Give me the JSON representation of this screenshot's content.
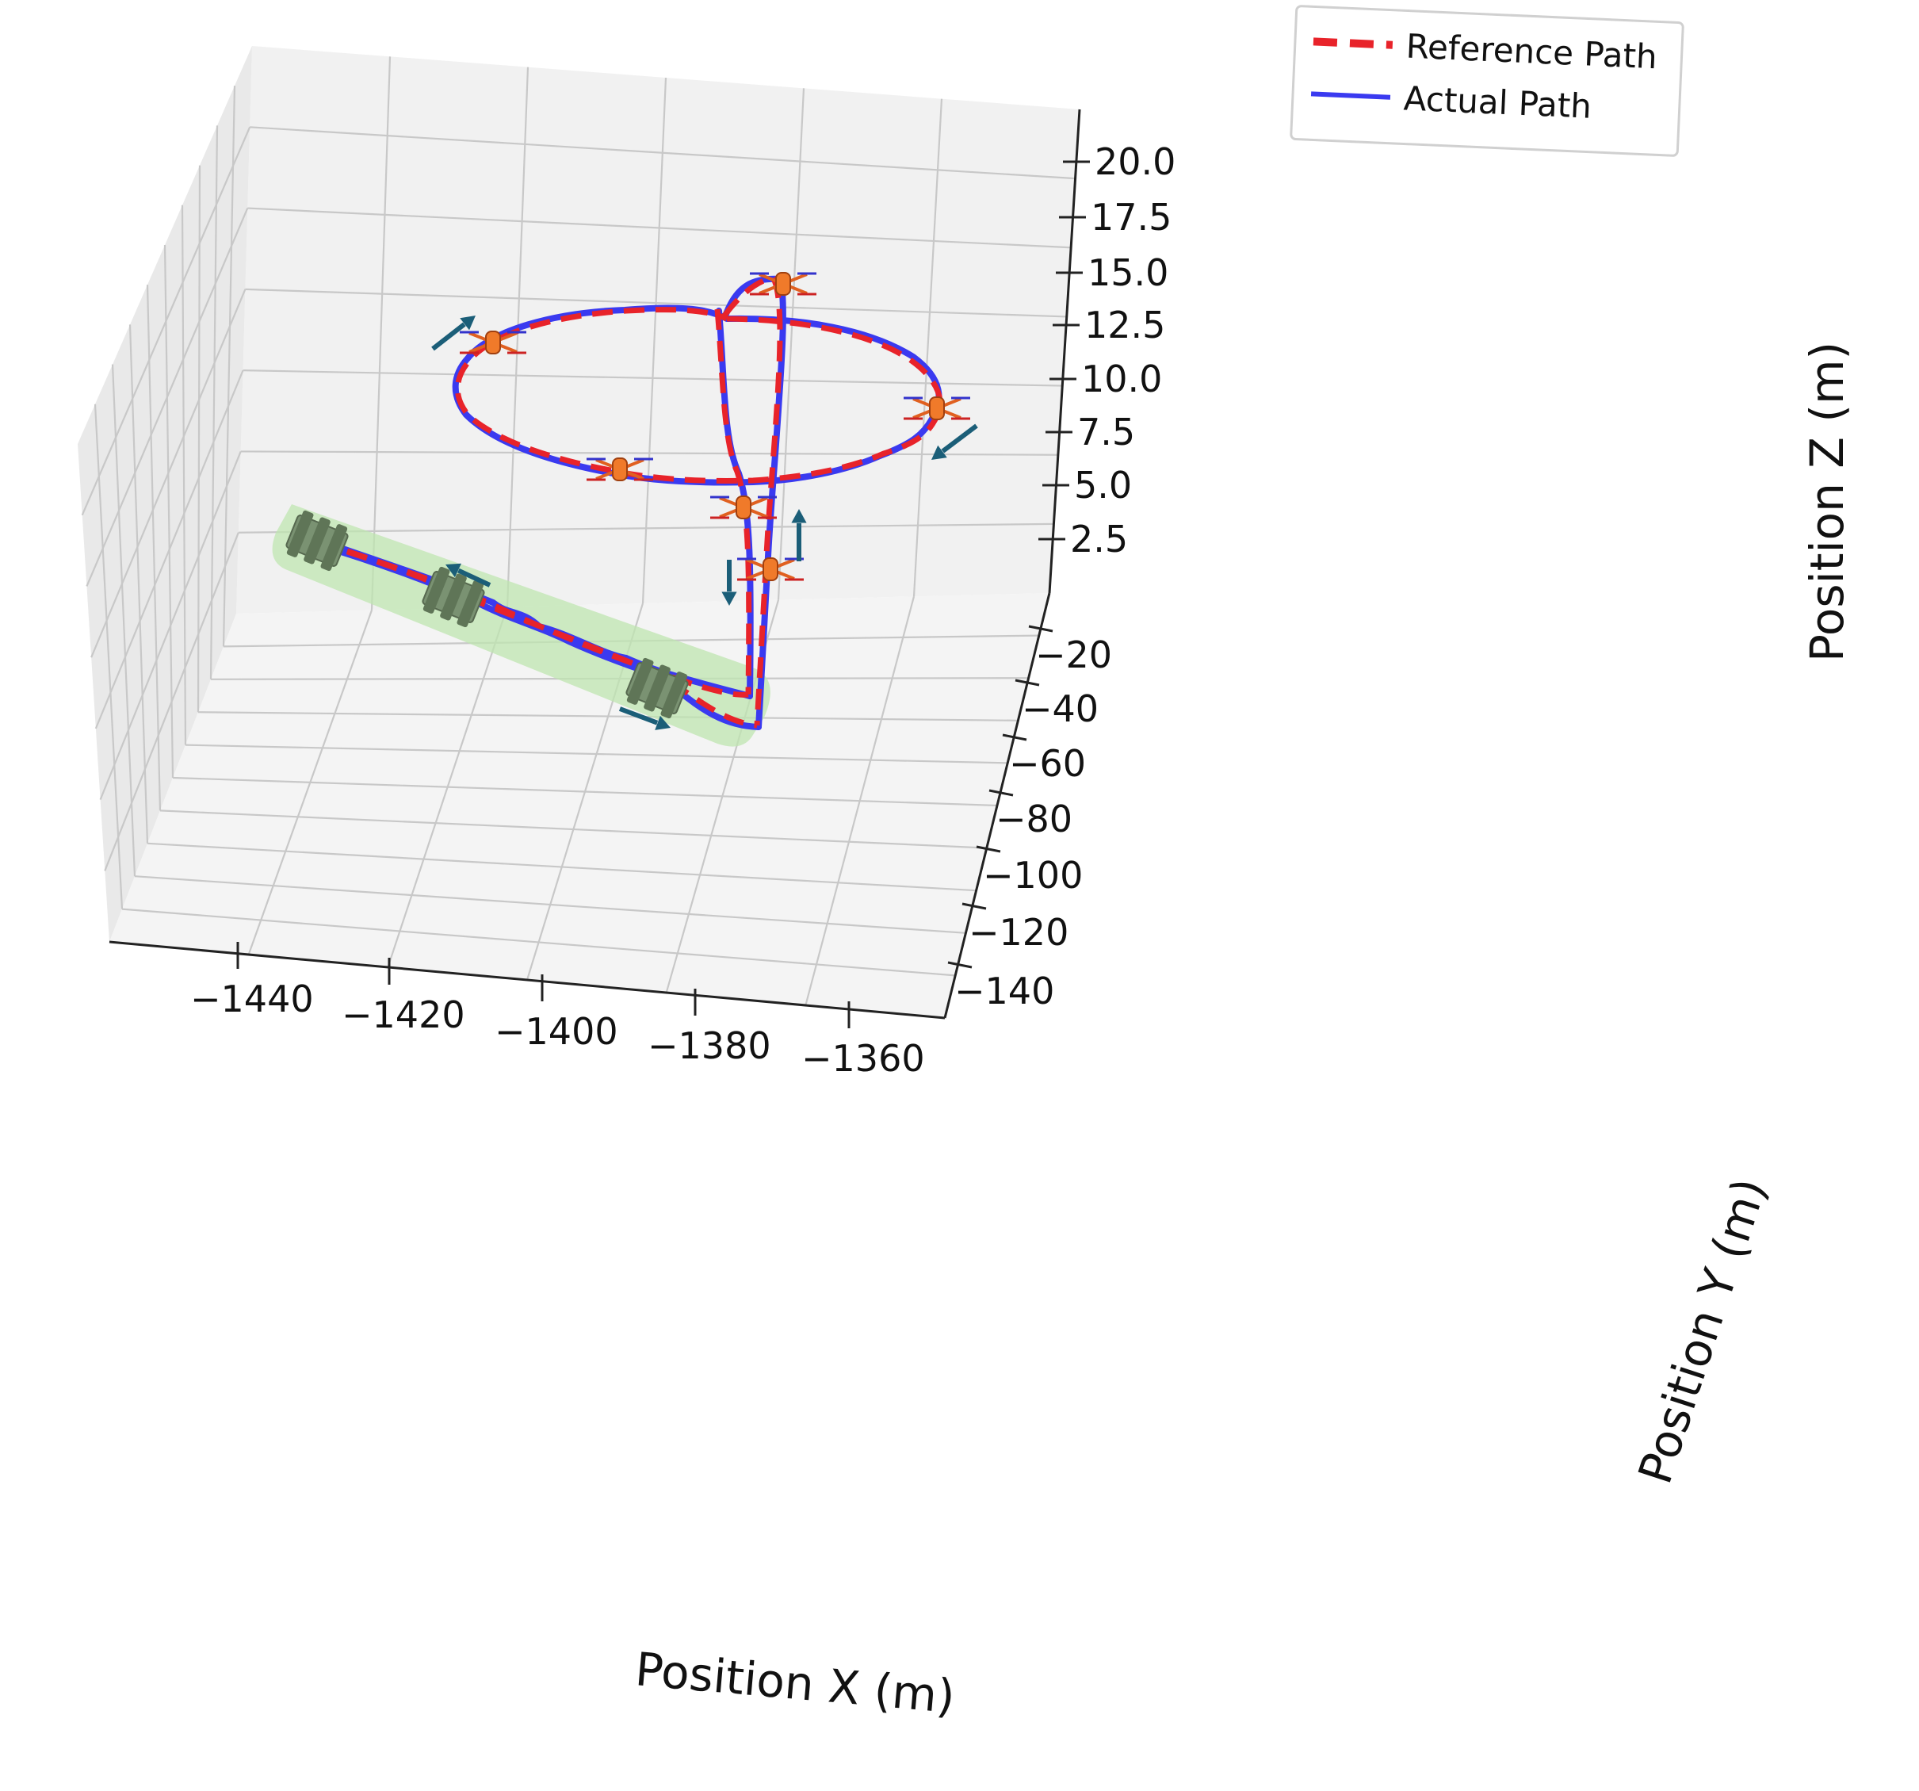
{
  "chart_data": {
    "type": "line-3d",
    "xlabel": "Position X (m)",
    "ylabel": "Position Y (m)",
    "zlabel": "Position Z (m)",
    "x_ticks": [
      "−1440",
      "−1420",
      "−1400",
      "−1380",
      "−1360"
    ],
    "y_ticks": [
      "−20",
      "−40",
      "−60",
      "−80",
      "−100",
      "−120",
      "−140"
    ],
    "z_ticks": [
      "2.5",
      "5.0",
      "7.5",
      "10.0",
      "12.5",
      "15.0",
      "17.5",
      "20.0"
    ],
    "grid": true,
    "legend_position": "top-right",
    "series": [
      {
        "name": "Reference Path",
        "color": "#e8232a",
        "style": "dashed"
      },
      {
        "name": "Actual Path",
        "color": "#3a3af0",
        "style": "solid"
      }
    ],
    "annotations": {
      "drone_icon": "quadrotor-drone-icon",
      "ground_vehicle_icon": "ground-vehicle-icon",
      "direction_arrow_color": "#1b5e78",
      "ground_segment_highlight_color": "#bfe6b0"
    }
  }
}
